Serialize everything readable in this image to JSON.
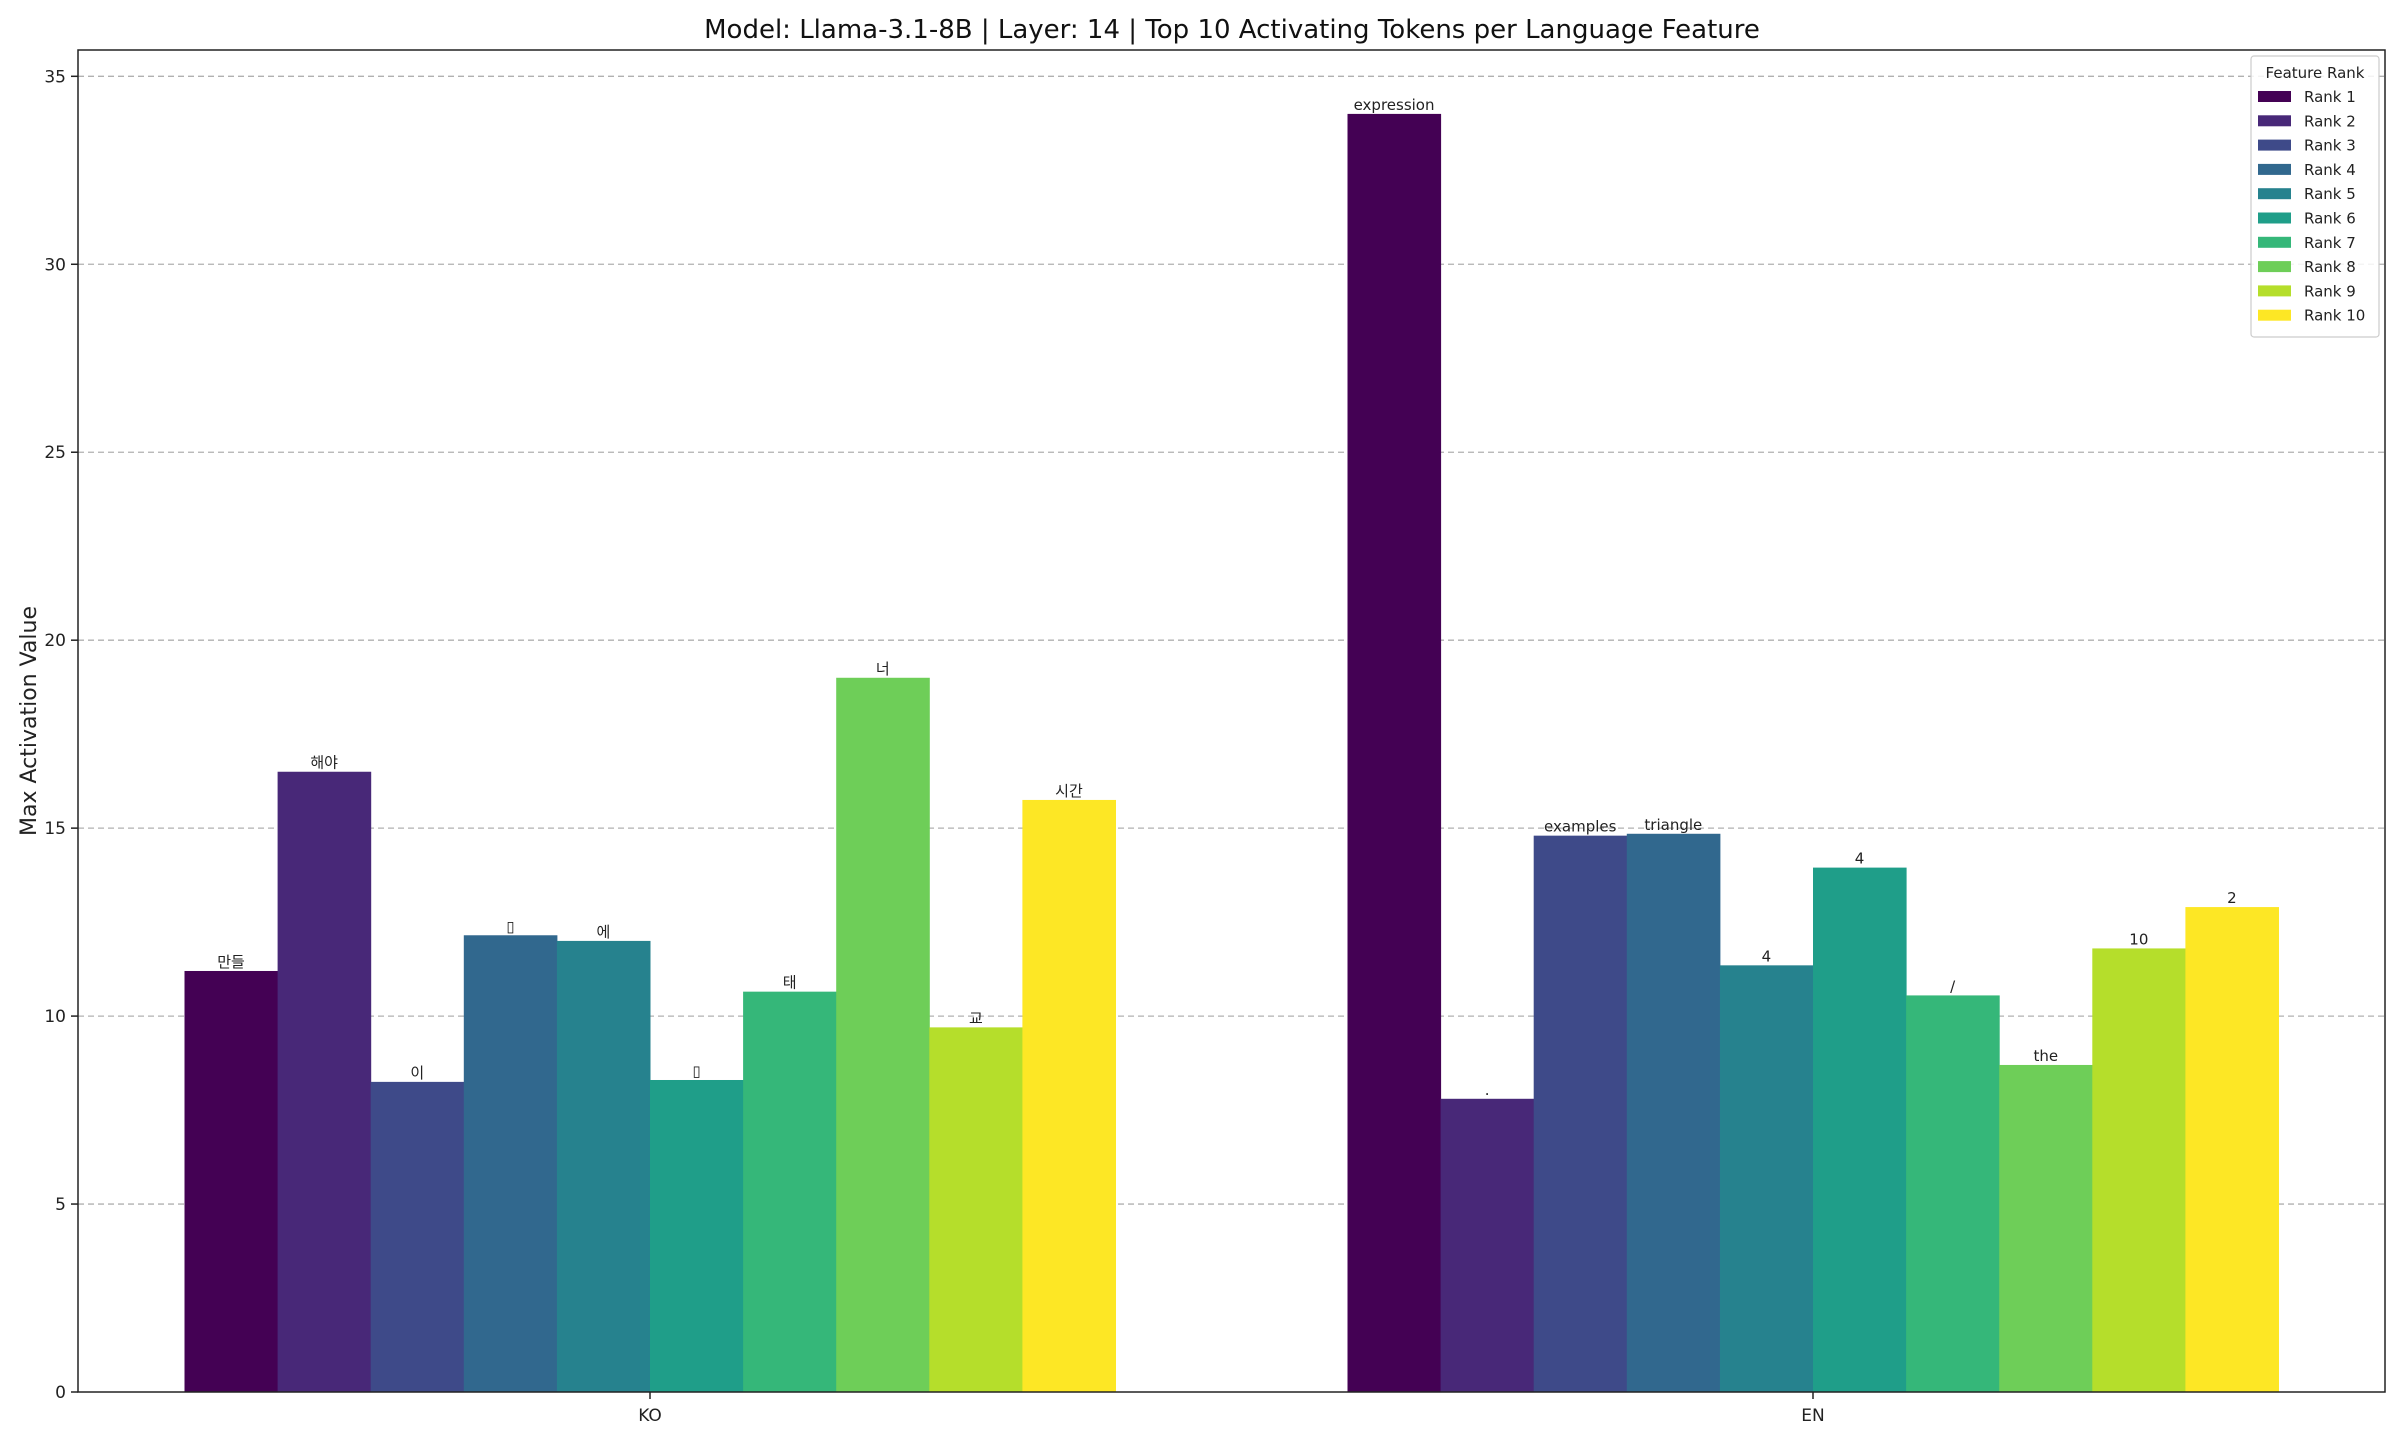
{
  "chart_data": {
    "type": "bar",
    "title": "Model: Llama-3.1-8B | Layer: 14 | Top 10 Activating Tokens per Language Feature",
    "xlabel": "",
    "ylabel": "Max Activation Value",
    "categories": [
      "KO",
      "EN"
    ],
    "ylim": [
      0,
      35.7
    ],
    "yticks": [
      0,
      5,
      10,
      15,
      20,
      25,
      30,
      35
    ],
    "grid": true,
    "legend": {
      "title": "Feature Rank",
      "position": "top-right"
    },
    "series": [
      {
        "name": "Rank 1",
        "color": "#440154",
        "values": [
          11.2,
          34.0
        ],
        "tokens": [
          "만들",
          "expression"
        ]
      },
      {
        "name": "Rank 2",
        "color": "#482878",
        "values": [
          16.5,
          7.8
        ],
        "tokens": [
          "해야",
          "."
        ]
      },
      {
        "name": "Rank 3",
        "color": "#3e4a89",
        "values": [
          8.25,
          14.8
        ],
        "tokens": [
          "이",
          "examples"
        ]
      },
      {
        "name": "Rank 4",
        "color": "#31688e",
        "values": [
          12.15,
          14.85
        ],
        "tokens": [
          "▯",
          "triangle"
        ]
      },
      {
        "name": "Rank 5",
        "color": "#26828e",
        "values": [
          12.0,
          11.35
        ],
        "tokens": [
          "에",
          "4"
        ]
      },
      {
        "name": "Rank 6",
        "color": "#1f9e89",
        "values": [
          8.3,
          13.95
        ],
        "tokens": [
          "▯",
          "4"
        ]
      },
      {
        "name": "Rank 7",
        "color": "#35b779",
        "values": [
          10.65,
          10.55
        ],
        "tokens": [
          "태",
          "/"
        ]
      },
      {
        "name": "Rank 8",
        "color": "#6ece58",
        "values": [
          19.0,
          8.7
        ],
        "tokens": [
          "너",
          "the"
        ]
      },
      {
        "name": "Rank 9",
        "color": "#b5de2b",
        "values": [
          9.7,
          11.8
        ],
        "tokens": [
          "교",
          "10"
        ]
      },
      {
        "name": "Rank 10",
        "color": "#fde725",
        "values": [
          15.75,
          12.9
        ],
        "tokens": [
          "시간",
          "2"
        ]
      }
    ]
  }
}
